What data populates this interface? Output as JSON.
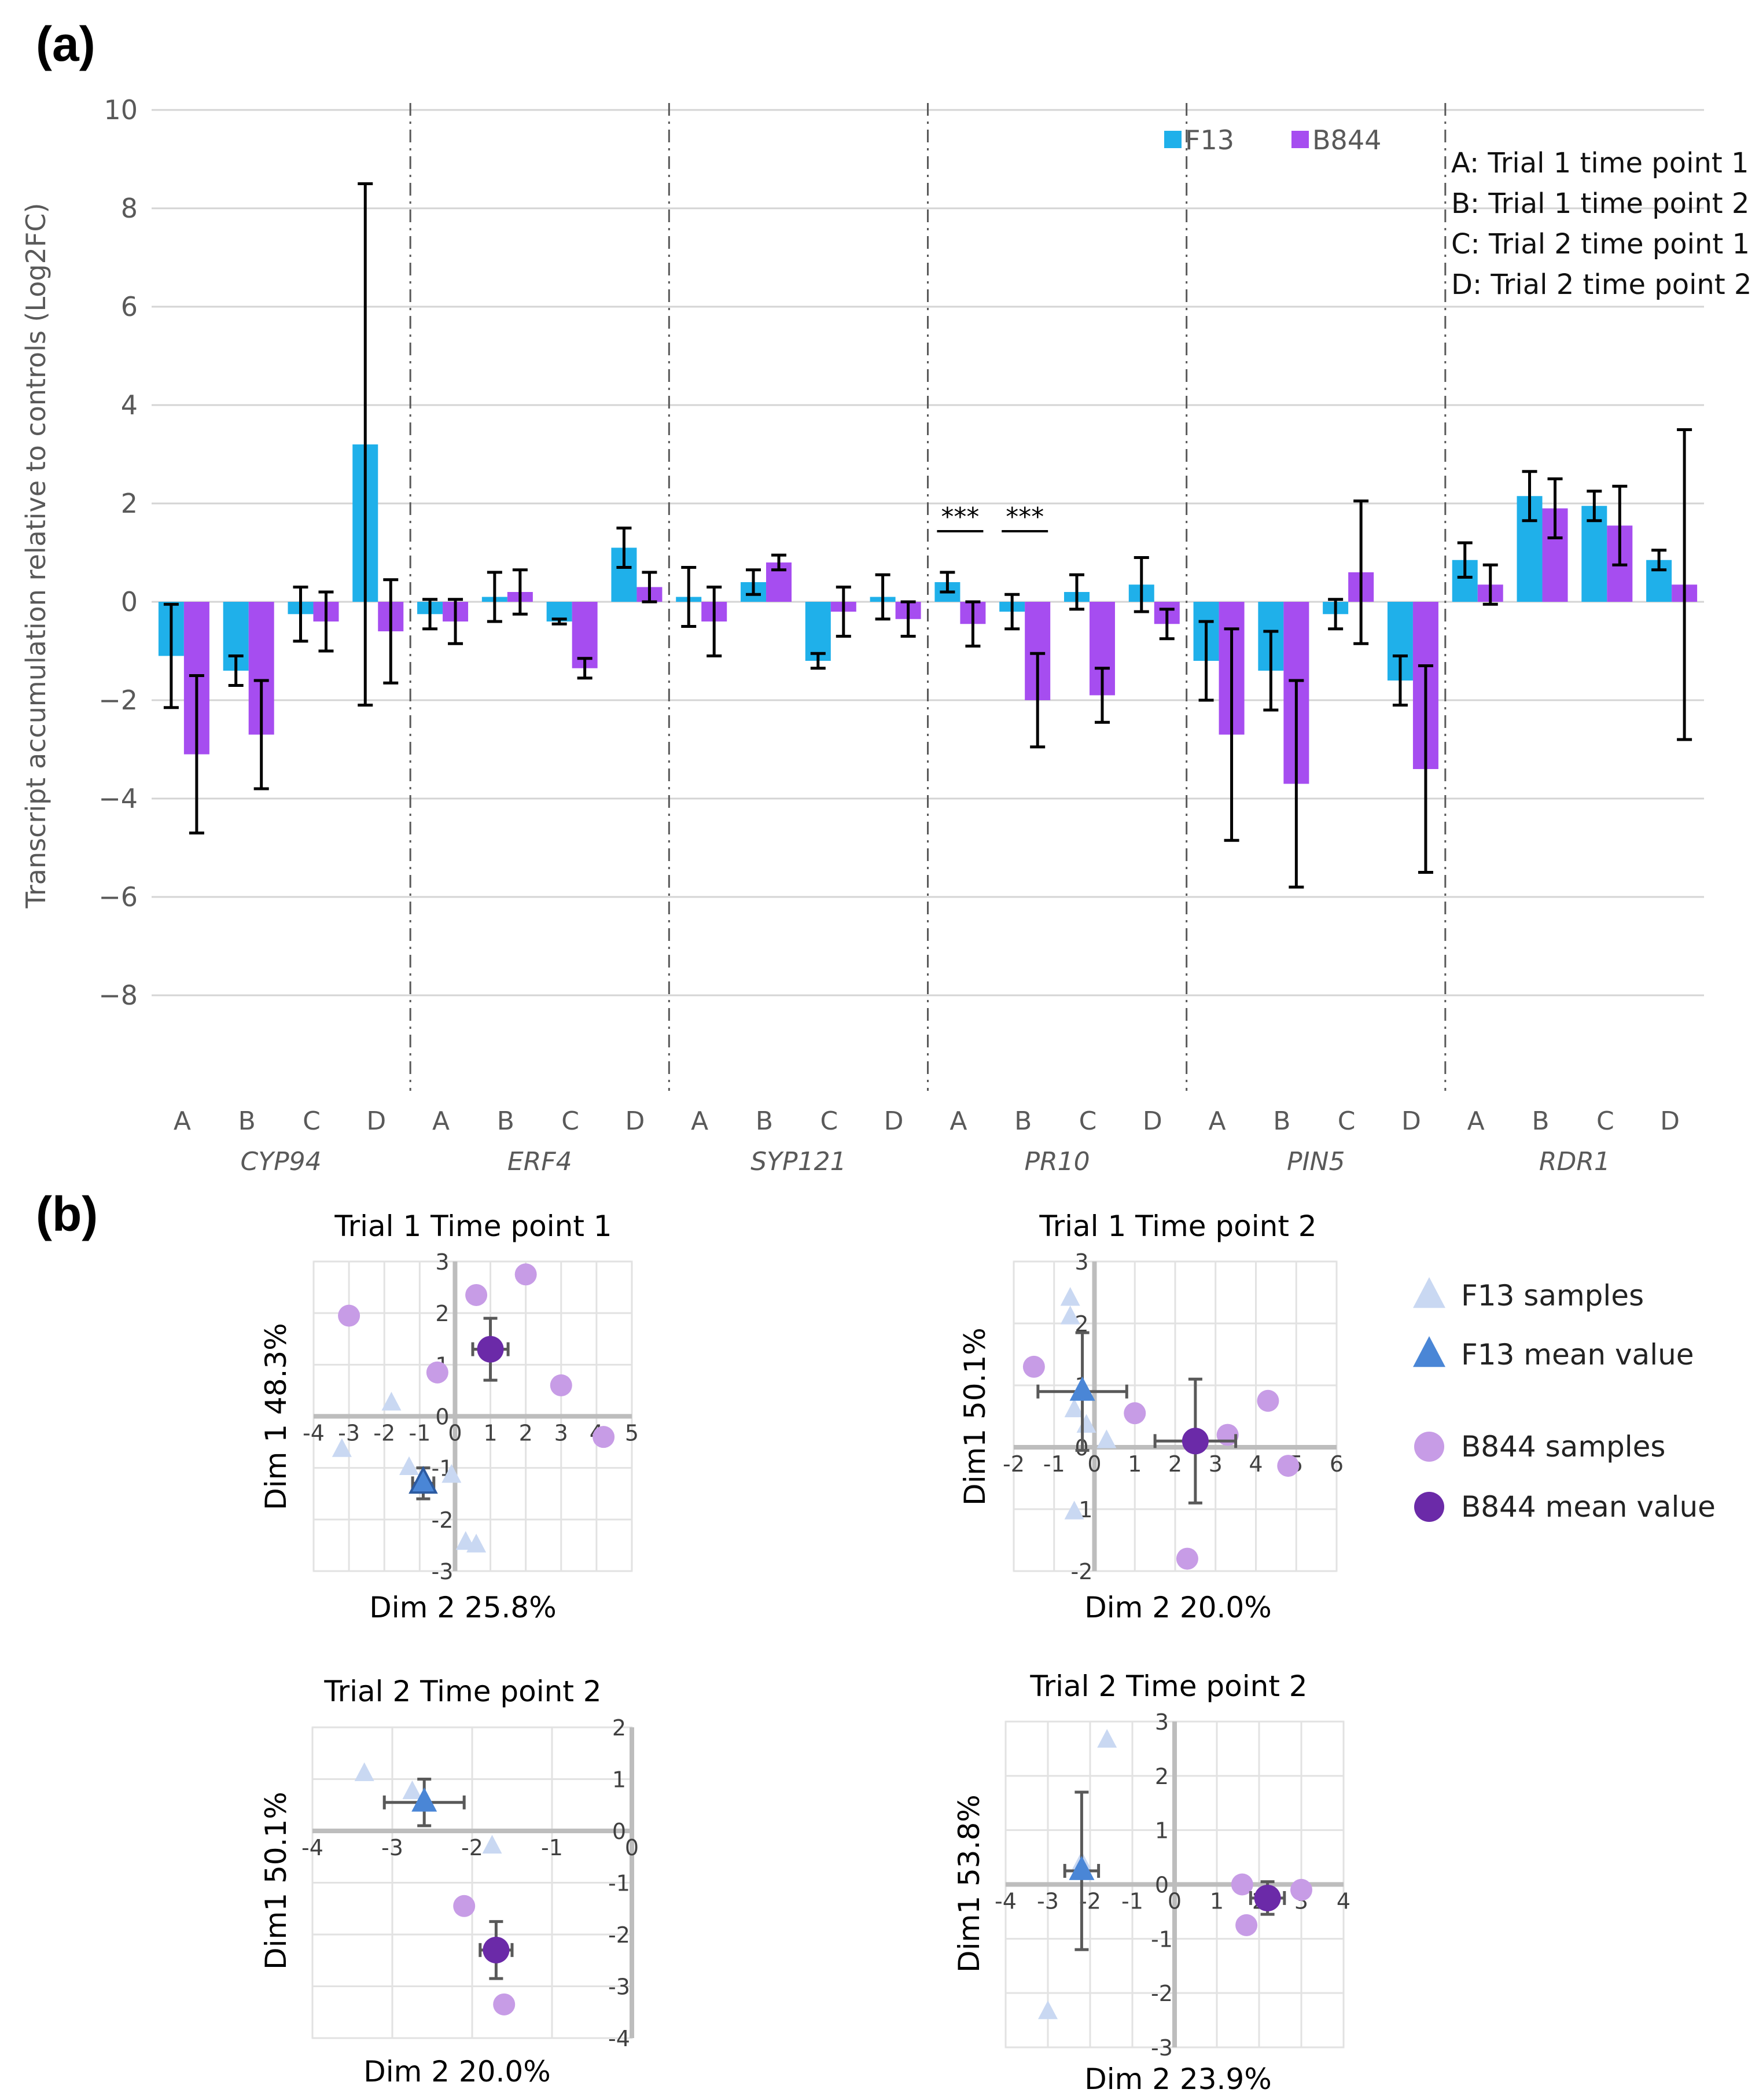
{
  "panel_a_label": "(a)",
  "panel_b_label": "(b)",
  "chart_data": [
    {
      "type": "bar",
      "title": "",
      "ylabel": "Transcript accumulation relative to controls (Log2FC)",
      "ylim": [
        -10,
        10
      ],
      "yticks": [
        "10",
        "8",
        "6",
        "4",
        "2",
        "0",
        "−2",
        "−4",
        "−6",
        "−8"
      ],
      "ytick_values": [
        10,
        8,
        6,
        4,
        2,
        0,
        -2,
        -4,
        -6,
        -8
      ],
      "groups": [
        "CYP94",
        "ERF4",
        "SYP121",
        "PR10",
        "PIN5",
        "RDR1"
      ],
      "categories": [
        "A",
        "B",
        "C",
        "D"
      ],
      "legend": [
        "F13",
        "B844"
      ],
      "legend_position": "top-right",
      "colors": {
        "F13": "#1fb0ea",
        "B844": "#a64df0"
      },
      "conditions_legend": [
        "A: Trial 1 time point 1",
        "B: Trial 1 time point 2",
        "C: Trial 2 time point 1",
        "D: Trial 2 time point 2"
      ],
      "significance": [
        {
          "group": "PR10",
          "category": "A",
          "label": "***"
        },
        {
          "group": "PR10",
          "category": "B",
          "label": "***"
        }
      ],
      "series": [
        {
          "name": "F13",
          "values": [
            [
              -1.1,
              -1.4,
              -0.25,
              3.2
            ],
            [
              -0.25,
              0.1,
              -0.4,
              1.1
            ],
            [
              0.1,
              0.4,
              -1.2,
              0.1
            ],
            [
              0.4,
              -0.2,
              0.2,
              0.35
            ],
            [
              -1.2,
              -1.4,
              -0.25,
              -1.6
            ],
            [
              0.85,
              2.15,
              1.95,
              0.85
            ]
          ],
          "errors": [
            [
              1.05,
              0.3,
              0.55,
              5.3
            ],
            [
              0.3,
              0.5,
              0.05,
              0.4
            ],
            [
              0.6,
              0.25,
              0.15,
              0.45
            ],
            [
              0.2,
              0.35,
              0.35,
              0.55
            ],
            [
              0.8,
              0.8,
              0.3,
              0.5
            ],
            [
              0.35,
              0.5,
              0.3,
              0.2
            ]
          ]
        },
        {
          "name": "B844",
          "values": [
            [
              -3.1,
              -2.7,
              -0.4,
              -0.6
            ],
            [
              -0.4,
              0.2,
              -1.35,
              0.3
            ],
            [
              -0.4,
              0.8,
              -0.2,
              -0.35
            ],
            [
              -0.45,
              -2.0,
              -1.9,
              -0.45
            ],
            [
              -2.7,
              -3.7,
              0.6,
              -3.4
            ],
            [
              0.35,
              1.9,
              1.55,
              0.35
            ]
          ],
          "errors": [
            [
              1.6,
              1.1,
              0.6,
              1.05
            ],
            [
              0.45,
              0.45,
              0.2,
              0.3
            ],
            [
              0.7,
              0.15,
              0.5,
              0.35
            ],
            [
              0.45,
              0.95,
              0.55,
              0.3
            ],
            [
              2.15,
              2.1,
              1.45,
              2.1
            ],
            [
              0.4,
              0.6,
              0.8,
              3.15
            ]
          ]
        }
      ]
    },
    {
      "type": "scatter",
      "title": "Trial 1 Time point 1",
      "xlabel": "Dim 2 25.8%",
      "ylabel": "Dim 1  48.3%",
      "xlim": [
        -4,
        5
      ],
      "ylim": [
        -3,
        3
      ],
      "xticks": [
        -4,
        -3,
        -2,
        -1,
        0,
        1,
        2,
        3,
        4,
        5
      ],
      "yticks": [
        -3,
        -2,
        -1,
        0,
        1,
        2,
        3
      ],
      "f13_samples": [
        [
          -3.2,
          -0.65
        ],
        [
          -1.8,
          0.25
        ],
        [
          -1.3,
          -1.0
        ],
        [
          -0.1,
          -1.15
        ],
        [
          0.3,
          -2.45
        ],
        [
          0.6,
          -2.5
        ]
      ],
      "f13_mean": {
        "x": -0.9,
        "y": -1.3,
        "xerr": 0.3,
        "yerr": 0.3
      },
      "b844_samples": [
        [
          -3.0,
          1.95
        ],
        [
          -0.5,
          0.85
        ],
        [
          0.6,
          2.35
        ],
        [
          2.0,
          2.75
        ],
        [
          3.0,
          0.6
        ],
        [
          4.2,
          -0.4
        ]
      ],
      "b844_mean": {
        "x": 1.0,
        "y": 1.3,
        "xerr": 0.5,
        "yerr": 0.6
      }
    },
    {
      "type": "scatter",
      "title": "Trial 1 Time point 2",
      "xlabel": "Dim 2 20.0%",
      "ylabel": "Dim1  50.1%",
      "xlim": [
        -2,
        6
      ],
      "ylim": [
        -2,
        3
      ],
      "xticks": [
        -2,
        -1,
        0,
        1,
        2,
        3,
        4,
        5,
        6
      ],
      "yticks": [
        -2,
        -1,
        0,
        1,
        2,
        3
      ],
      "f13_samples": [
        [
          -0.6,
          2.4
        ],
        [
          -0.6,
          2.1
        ],
        [
          -0.5,
          0.6
        ],
        [
          -0.2,
          0.35
        ],
        [
          0.3,
          0.1
        ],
        [
          -0.5,
          -1.05
        ]
      ],
      "f13_mean": {
        "x": -0.3,
        "y": 0.9,
        "xerr": 1.1,
        "yerr": 0.95
      },
      "b844_samples": [
        [
          -1.5,
          1.3
        ],
        [
          1.0,
          0.55
        ],
        [
          3.3,
          0.2
        ],
        [
          4.3,
          0.75
        ],
        [
          4.8,
          -0.3
        ],
        [
          2.3,
          -1.8
        ]
      ],
      "b844_mean": {
        "x": 2.5,
        "y": 0.1,
        "xerr": 1.0,
        "yerr": 1.0
      }
    },
    {
      "type": "scatter",
      "title": "Trial 2 Time point 2",
      "xlabel": "Dim 2 20.0%",
      "ylabel": "Dim1  50.1%",
      "xlim": [
        -4,
        0
      ],
      "ylim": [
        -4,
        2
      ],
      "xticks": [
        -4,
        -3,
        -2,
        -1,
        0
      ],
      "yticks": [
        -4,
        -3,
        -2,
        -1,
        0,
        1,
        2
      ],
      "f13_samples": [
        [
          -3.35,
          1.1
        ],
        [
          -2.75,
          0.75
        ],
        [
          -1.75,
          -0.3
        ]
      ],
      "f13_mean": {
        "x": -2.6,
        "y": 0.55,
        "xerr": 0.5,
        "yerr": 0.45
      },
      "b844_samples": [
        [
          -2.1,
          -1.45
        ],
        [
          -1.6,
          -3.35
        ]
      ],
      "b844_mean": {
        "x": -1.7,
        "y": -2.3,
        "xerr": 0.2,
        "yerr": 0.55
      }
    },
    {
      "type": "scatter",
      "title": "Trial 2 Time point 2",
      "xlabel": "Dim 2 23.9%",
      "ylabel": "Dim1  53.8%",
      "xlim": [
        -4,
        4
      ],
      "ylim": [
        -3,
        3
      ],
      "xticks": [
        -4,
        -3,
        -2,
        -1,
        0,
        1,
        2,
        3,
        4
      ],
      "yticks": [
        -3,
        -2,
        -1,
        0,
        1,
        2,
        3
      ],
      "f13_samples": [
        [
          -1.6,
          2.65
        ],
        [
          -2.2,
          0.4
        ],
        [
          -3.0,
          -2.35
        ]
      ],
      "f13_mean": {
        "x": -2.2,
        "y": 0.25,
        "xerr": 0.4,
        "yerr": 1.45
      },
      "b844_samples": [
        [
          1.6,
          0.0
        ],
        [
          1.7,
          -0.75
        ],
        [
          3.0,
          -0.1
        ]
      ],
      "b844_mean": {
        "x": 2.2,
        "y": -0.25,
        "xerr": 0.4,
        "yerr": 0.3
      }
    }
  ],
  "scatter_legend": {
    "f13_samples": "F13 samples",
    "f13_mean": "F13 mean value",
    "b844_samples": "B844 samples",
    "b844_mean": "B844 mean value",
    "colors": {
      "f13_samples": "#c9d8f2",
      "f13_mean": "#4a86d6",
      "b844_samples": "#c79ce6",
      "b844_mean": "#6b2aa8"
    }
  }
}
